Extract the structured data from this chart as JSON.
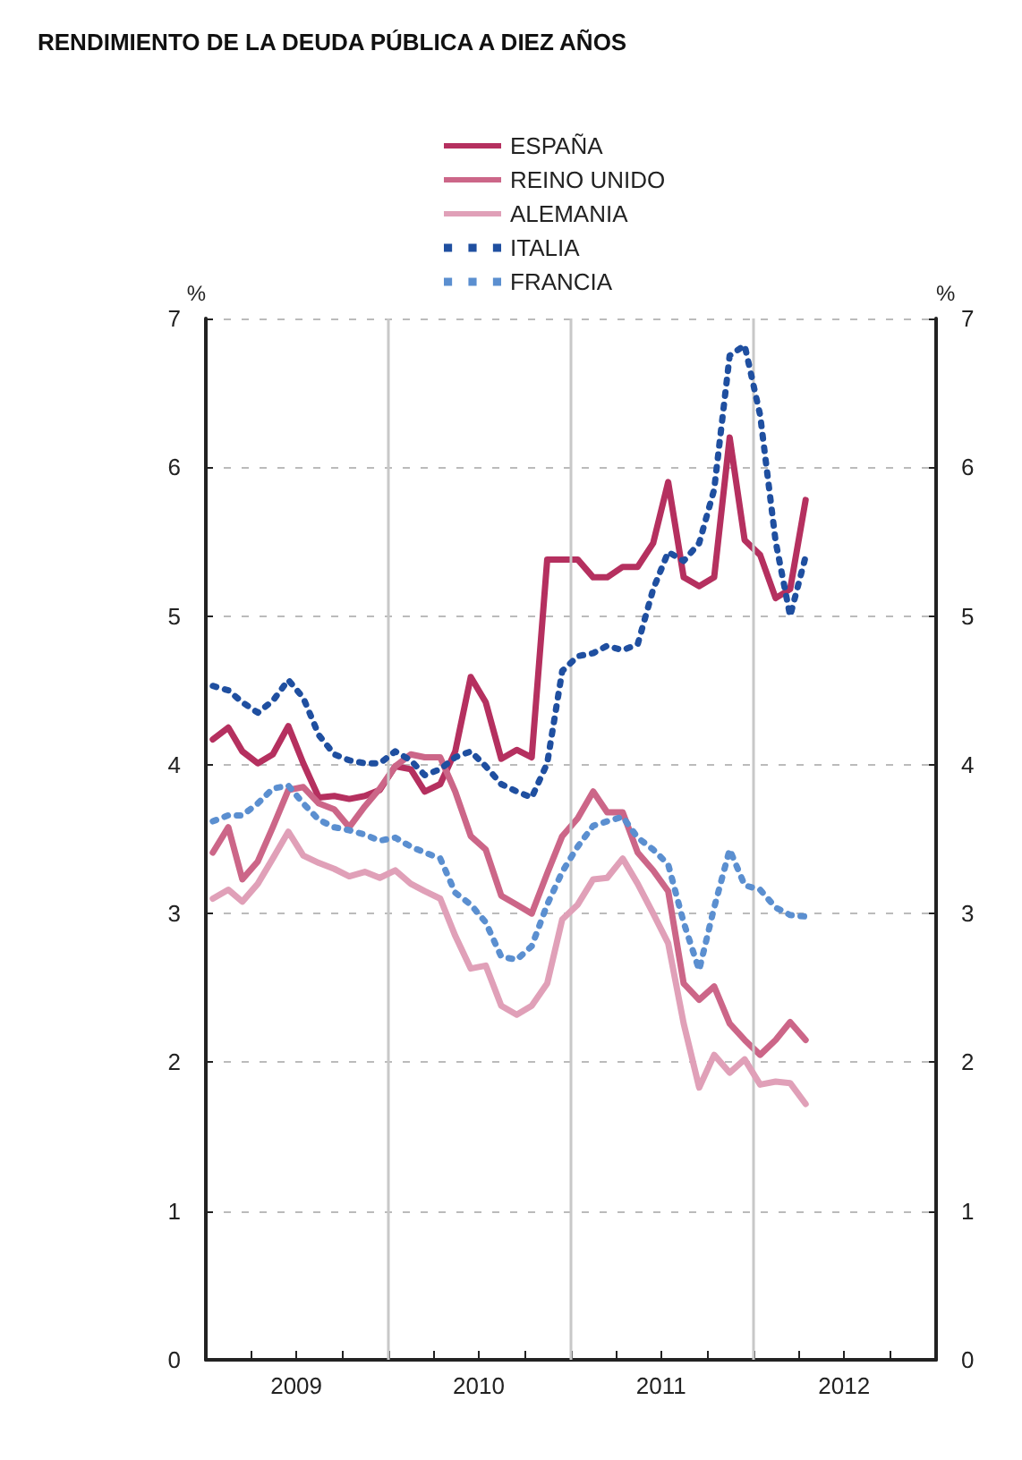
{
  "chart_data": {
    "type": "line",
    "title": "RENDIMIENTO DE LA DEUDA PÚBLICA A DIEZ AÑOS",
    "ylabel": "%",
    "y2label": "%",
    "x": [
      "2009-01-15",
      "2009-02-15",
      "2009-03-15",
      "2009-04-15",
      "2009-05-15",
      "2009-06-15",
      "2009-07-15",
      "2009-08-15",
      "2009-09-15",
      "2009-10-15",
      "2009-11-15",
      "2009-12-15",
      "2010-01-15",
      "2010-02-15",
      "2010-03-15",
      "2010-04-15",
      "2010-05-15",
      "2010-06-15",
      "2010-07-15",
      "2010-08-15",
      "2010-09-15",
      "2010-10-15",
      "2010-11-15",
      "2010-12-15",
      "2011-01-15",
      "2011-02-15",
      "2011-03-15",
      "2011-04-15",
      "2011-05-15",
      "2011-06-15",
      "2011-07-15",
      "2011-08-15",
      "2011-09-15",
      "2011-10-15",
      "2011-11-15",
      "2011-12-15",
      "2012-01-15",
      "2012-02-15",
      "2012-03-15",
      "2012-04-15"
    ],
    "series": [
      {
        "name": "ESPAÑA",
        "color": "#b5305f",
        "line_style": "solid",
        "values": [
          4.17,
          4.25,
          4.09,
          4.01,
          4.07,
          4.26,
          4.01,
          3.78,
          3.79,
          3.77,
          3.79,
          3.83,
          3.99,
          3.97,
          3.82,
          3.87,
          4.09,
          4.59,
          4.42,
          4.04,
          4.1,
          4.05,
          5.38,
          5.38,
          5.38,
          5.26,
          5.26,
          5.33,
          5.33,
          5.49,
          5.9,
          5.26,
          5.2,
          5.26,
          6.2,
          5.51,
          5.41,
          5.12,
          5.18,
          5.78
        ]
      },
      {
        "name": "REINO UNIDO",
        "color": "#cc6688",
        "line_style": "solid",
        "values": [
          3.41,
          3.58,
          3.23,
          3.35,
          3.58,
          3.83,
          3.85,
          3.74,
          3.7,
          3.58,
          3.72,
          3.84,
          3.99,
          4.07,
          4.05,
          4.05,
          3.82,
          3.52,
          3.43,
          3.12,
          3.06,
          3.0,
          3.27,
          3.52,
          3.64,
          3.82,
          3.68,
          3.68,
          3.41,
          3.29,
          3.15,
          2.53,
          2.42,
          2.51,
          2.26,
          2.15,
          2.05,
          2.15,
          2.27,
          2.15
        ]
      },
      {
        "name": "ALEMANIA",
        "color": "#e0a0b8",
        "line_style": "solid",
        "values": [
          3.1,
          3.16,
          3.08,
          3.2,
          3.37,
          3.55,
          3.39,
          3.34,
          3.3,
          3.25,
          3.28,
          3.24,
          3.29,
          3.2,
          3.15,
          3.1,
          2.85,
          2.63,
          2.65,
          2.38,
          2.32,
          2.38,
          2.53,
          2.96,
          3.06,
          3.23,
          3.24,
          3.37,
          3.2,
          3.0,
          2.8,
          2.26,
          1.83,
          2.05,
          1.93,
          2.02,
          1.85,
          1.87,
          1.86,
          1.72
        ]
      },
      {
        "name": "ITALIA",
        "color": "#1f4fa0",
        "line_style": "dotted",
        "values": [
          4.53,
          4.5,
          4.42,
          4.35,
          4.43,
          4.57,
          4.45,
          4.2,
          4.07,
          4.03,
          4.01,
          4.01,
          4.09,
          4.03,
          3.93,
          3.97,
          4.05,
          4.09,
          3.99,
          3.87,
          3.82,
          3.78,
          4.01,
          4.63,
          4.73,
          4.75,
          4.8,
          4.77,
          4.81,
          5.18,
          5.43,
          5.37,
          5.49,
          5.85,
          6.75,
          6.82,
          6.35,
          5.5,
          5.0,
          5.4
        ]
      },
      {
        "name": "FRANCIA",
        "color": "#5b8fd0",
        "line_style": "dotted",
        "values": [
          3.62,
          3.66,
          3.66,
          3.74,
          3.84,
          3.86,
          3.74,
          3.63,
          3.58,
          3.56,
          3.53,
          3.49,
          3.51,
          3.45,
          3.41,
          3.37,
          3.14,
          3.06,
          2.94,
          2.71,
          2.69,
          2.78,
          3.06,
          3.28,
          3.45,
          3.59,
          3.62,
          3.65,
          3.51,
          3.43,
          3.33,
          2.94,
          2.62,
          3.04,
          3.43,
          3.19,
          3.16,
          3.04,
          2.99,
          2.98
        ]
      }
    ],
    "xlim": [
      "2009-01-01",
      "2013-01-01"
    ],
    "xticks": [
      {
        "value": "2009-04-01",
        "label": null
      },
      {
        "value": "2009-07-01",
        "label": "2009"
      },
      {
        "value": "2009-10-01",
        "label": null
      },
      {
        "value": "2010-01-01",
        "label": null
      },
      {
        "value": "2010-04-01",
        "label": null
      },
      {
        "value": "2010-07-01",
        "label": "2010"
      },
      {
        "value": "2010-10-01",
        "label": null
      },
      {
        "value": "2011-01-01",
        "label": null
      },
      {
        "value": "2011-04-01",
        "label": null
      },
      {
        "value": "2011-07-01",
        "label": "2011"
      },
      {
        "value": "2011-10-01",
        "label": null
      },
      {
        "value": "2012-01-01",
        "label": null
      },
      {
        "value": "2012-04-01",
        "label": null
      },
      {
        "value": "2012-07-01",
        "label": "2012"
      },
      {
        "value": "2012-10-01",
        "label": null
      }
    ],
    "ylim": [
      0,
      7
    ],
    "yticks": [
      0,
      1,
      2,
      3,
      4,
      5,
      6,
      7
    ],
    "y2lim": [
      0,
      7
    ],
    "y2ticks": [
      0,
      1,
      2,
      3,
      4,
      5,
      6,
      7
    ],
    "ref_lines": [
      {
        "axis": "x",
        "value": "2010-01-01",
        "label": null,
        "color": "#c8c8c8"
      },
      {
        "axis": "x",
        "value": "2011-01-01",
        "label": null,
        "color": "#c8c8c8"
      },
      {
        "axis": "x",
        "value": "2012-01-01",
        "label": null,
        "color": "#c8c8c8"
      }
    ],
    "grid": "y",
    "legend": "top",
    "marker": "none"
  }
}
